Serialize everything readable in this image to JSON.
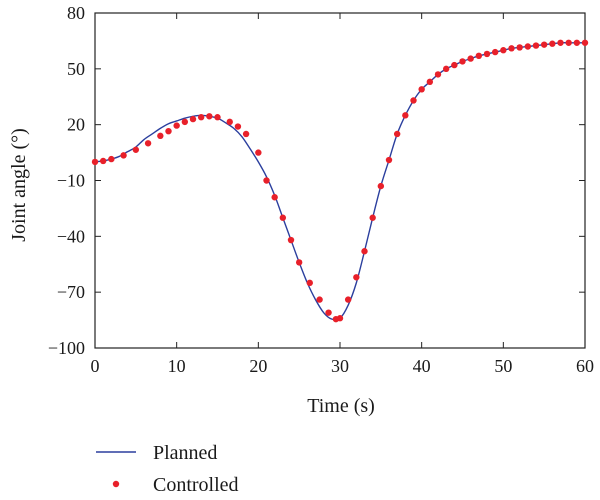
{
  "chart_data": {
    "type": "line",
    "title": "",
    "xlabel": "Time (s)",
    "ylabel": "Joint angle (°)",
    "xlim": [
      0,
      60
    ],
    "ylim": [
      -100,
      80
    ],
    "xticks": [
      0,
      10,
      20,
      30,
      40,
      50,
      60
    ],
    "yticks": [
      80,
      50,
      20,
      -10,
      -40,
      -70,
      -100
    ],
    "xtick_labels": [
      "0",
      "10",
      "20",
      "30",
      "40",
      "50",
      "60"
    ],
    "ytick_labels": [
      "80",
      "50",
      "20",
      "−10",
      "−40",
      "−70",
      "−100"
    ],
    "grid": false,
    "legend_position": "below",
    "x": [
      0,
      1,
      2,
      3,
      4,
      5,
      6,
      7,
      8,
      9,
      10,
      11,
      12,
      13,
      14,
      15,
      16,
      17,
      18,
      19,
      20,
      21,
      22,
      23,
      24,
      25,
      26,
      27,
      28,
      29,
      30,
      31,
      32,
      33,
      34,
      35,
      36,
      37,
      38,
      39,
      40,
      41,
      42,
      43,
      44,
      45,
      46,
      47,
      48,
      49,
      50,
      51,
      52,
      53,
      54,
      55,
      56,
      57,
      58,
      59,
      60
    ],
    "series": [
      {
        "name": "Planned",
        "style": "line",
        "color": "#2b3f9e",
        "values": [
          0,
          0.5,
          1.5,
          3,
          5.5,
          8,
          12,
          15,
          18,
          20.5,
          22,
          23.5,
          24.5,
          25,
          24.5,
          23.5,
          21,
          18,
          13.5,
          7,
          0,
          -8,
          -18,
          -30,
          -42,
          -54,
          -65,
          -74,
          -81,
          -84.5,
          -84,
          -77,
          -65,
          -48,
          -30,
          -13,
          1,
          15,
          25,
          33,
          39,
          43,
          47,
          50,
          52,
          54,
          55.5,
          57,
          58,
          59,
          60,
          61,
          61.5,
          62,
          62.5,
          63,
          63.5,
          64,
          64,
          64,
          64
        ]
      },
      {
        "name": "Controlled",
        "style": "markers",
        "color": "#e8202a",
        "x": [
          0,
          1,
          2,
          3.5,
          5,
          6.5,
          8,
          9,
          10,
          11,
          12,
          13,
          14,
          15,
          16.5,
          17.5,
          18.5,
          20,
          21,
          22,
          23,
          24,
          25,
          26.3,
          27.5,
          28.6,
          29.5,
          30,
          31,
          32,
          33,
          34,
          35,
          36,
          37,
          38,
          39,
          40,
          41,
          42,
          43,
          44,
          45,
          46,
          47,
          48,
          49,
          50,
          51,
          52,
          53,
          54,
          55,
          56,
          57,
          58,
          59,
          60
        ],
        "values": [
          0,
          0.5,
          1.5,
          3.5,
          6.5,
          10,
          14,
          16.5,
          19.5,
          21.5,
          23,
          24,
          24.5,
          24,
          21.5,
          19,
          15,
          5,
          -10,
          -19,
          -30,
          -42,
          -54,
          -65,
          -74,
          -81,
          -84.5,
          -84,
          -74,
          -62,
          -48,
          -30,
          -13,
          1,
          15,
          25,
          33,
          39,
          43,
          47,
          50,
          52,
          54,
          55.5,
          57,
          58,
          59,
          60,
          61,
          61.5,
          62,
          62.5,
          63,
          63.5,
          64,
          64,
          64,
          64
        ]
      }
    ]
  }
}
